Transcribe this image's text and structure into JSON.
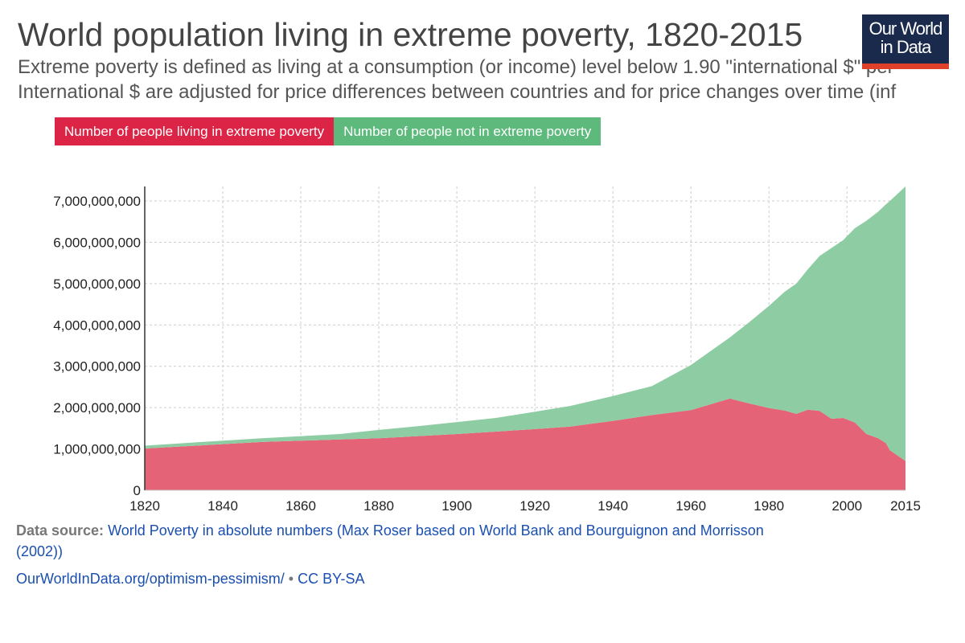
{
  "title": "World population living in extreme poverty, 1820-2015",
  "subtitle_lines": [
    "Extreme poverty is defined as living at a consumption (or income) level below 1.90 \"international $\" per",
    "International $ are adjusted for price differences between countries and for price changes over time (inf"
  ],
  "logo": {
    "line1": "Our World",
    "line2": "in Data"
  },
  "footer": {
    "source_label": "Data source:",
    "source_text": "World Poverty in absolute numbers (Max Roser based on World Bank and Bourguignon and Morrisson",
    "source_text2": "(2002))",
    "url": "OurWorldInData.org/optimism-pessimism/",
    "separator": "•",
    "license": "CC BY-SA"
  },
  "chart_data": {
    "type": "area",
    "stacked": true,
    "title": "World population living in extreme poverty, 1820-2015",
    "x": [
      1820,
      1850,
      1870,
      1880,
      1890,
      1900,
      1910,
      1920,
      1929,
      1940,
      1950,
      1960,
      1970,
      1975,
      1980,
      1984,
      1987,
      1990,
      1993,
      1996,
      1999,
      2002,
      2005,
      2008,
      2010,
      2011,
      2015
    ],
    "series": [
      {
        "name": "Number of people living in extreme poverty",
        "color": "#e56377",
        "legend_color": "#dc2446",
        "values": [
          1010000000.0,
          1170000000.0,
          1230000000.0,
          1260000000.0,
          1310000000.0,
          1360000000.0,
          1420000000.0,
          1480000000.0,
          1540000000.0,
          1680000000.0,
          1820000000.0,
          1940000000.0,
          2220000000.0,
          2100000000.0,
          1990000000.0,
          1930000000.0,
          1850000000.0,
          1950000000.0,
          1920000000.0,
          1730000000.0,
          1750000000.0,
          1640000000.0,
          1360000000.0,
          1260000000.0,
          1140000000.0,
          970000000.0,
          710000000.0
        ]
      },
      {
        "name": "Number of people not in extreme poverty",
        "color": "#8ecda3",
        "legend_color": "#5eb97c",
        "values": [
          70000000.0,
          90000000.0,
          130000000.0,
          200000000.0,
          240000000.0,
          290000000.0,
          330000000.0,
          420000000.0,
          500000000.0,
          600000000.0,
          700000000.0,
          1090000000.0,
          1480000000.0,
          1970000000.0,
          2470000000.0,
          2870000000.0,
          3150000000.0,
          3400000000.0,
          3750000000.0,
          4130000000.0,
          4300000000.0,
          4700000000.0,
          5160000000.0,
          5480000000.0,
          5780000000.0,
          6030000000.0,
          6640000000.0
        ]
      }
    ],
    "xlim": [
      1820,
      2015
    ],
    "ylim": [
      0,
      7000000000
    ],
    "x_ticks": [
      "1820",
      "1840",
      "1860",
      "1880",
      "1900",
      "1920",
      "1940",
      "1960",
      "1980",
      "2000",
      "2015"
    ],
    "y_ticks": [
      "0",
      "1,000,000,000",
      "2,000,000,000",
      "3,000,000,000",
      "4,000,000,000",
      "5,000,000,000",
      "6,000,000,000",
      "7,000,000,000"
    ],
    "grid": true,
    "legend_position": "top-left"
  }
}
